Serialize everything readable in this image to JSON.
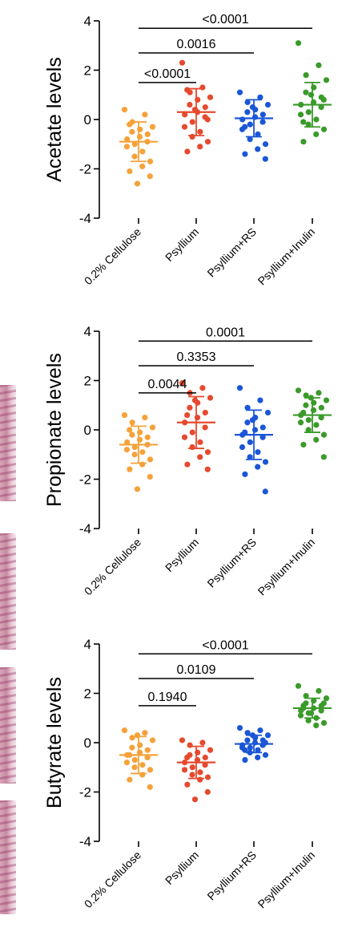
{
  "colors": [
    "#f5a23a",
    "#e64a2e",
    "#1a56d6",
    "#3a9a2a"
  ],
  "chart_data": [
    {
      "type": "scatter",
      "ylabel": "Acetate levels",
      "ylim": [
        -4,
        4
      ],
      "yticks": [
        "4",
        "2",
        "0",
        "-2",
        "-4"
      ],
      "categories": [
        "0.2% Cellulose",
        "Psyllium",
        "Psyllium+RS",
        "Psyllium+Inulin"
      ],
      "groups": [
        {
          "name": "0.2% Cellulose",
          "mean": -0.9,
          "sd": 0.8,
          "points": [
            0.4,
            0.2,
            -0.1,
            -0.3,
            -0.4,
            -0.5,
            -0.6,
            -0.7,
            -0.8,
            -0.9,
            -1.0,
            -1.1,
            -1.3,
            -1.5,
            -1.7,
            -1.9,
            -2.1,
            -2.3,
            -2.6,
            -0.2
          ]
        },
        {
          "name": "Psyllium",
          "mean": 0.3,
          "sd": 0.95,
          "points": [
            2.3,
            1.3,
            1.1,
            0.9,
            0.8,
            0.6,
            0.5,
            0.3,
            0.2,
            0.1,
            -0.1,
            -0.3,
            -0.5,
            -0.7,
            -0.9,
            -1.1,
            -1.3,
            0.0,
            0.4,
            1.2
          ]
        },
        {
          "name": "Psyllium+RS",
          "mean": 0.05,
          "sd": 0.75,
          "points": [
            1.1,
            0.9,
            0.7,
            0.6,
            0.4,
            0.3,
            0.2,
            0.1,
            0.0,
            -0.1,
            -0.2,
            -0.4,
            -0.6,
            -0.8,
            -1.0,
            -1.2,
            -1.4,
            -1.6,
            0.5,
            -0.3
          ]
        },
        {
          "name": "Psyllium+Inulin",
          "mean": 0.6,
          "sd": 0.9,
          "points": [
            3.1,
            2.2,
            1.8,
            1.6,
            1.3,
            1.1,
            0.9,
            0.7,
            0.6,
            0.5,
            0.3,
            0.2,
            0.0,
            -0.2,
            -0.4,
            -0.6,
            -0.9,
            0.8,
            1.0,
            -0.1
          ]
        }
      ],
      "comparisons": [
        {
          "from": 0,
          "to": 1,
          "y": 1.5,
          "label": "<0.0001"
        },
        {
          "from": 0,
          "to": 2,
          "y": 2.7,
          "label": "0.0016"
        },
        {
          "from": 0,
          "to": 3,
          "y": 3.7,
          "label": "<0.0001"
        }
      ]
    },
    {
      "type": "scatter",
      "ylabel": "Propionate levels",
      "ylim": [
        -4,
        4
      ],
      "yticks": [
        "4",
        "2",
        "0",
        "-2",
        "-4"
      ],
      "categories": [
        "0.2% Cellulose",
        "Psyllium",
        "Psyllium+RS",
        "Psyllium+Inulin"
      ],
      "groups": [
        {
          "name": "0.2% Cellulose",
          "mean": -0.6,
          "sd": 0.75,
          "points": [
            0.6,
            0.5,
            0.3,
            0.1,
            -0.1,
            -0.2,
            -0.3,
            -0.4,
            -0.5,
            -0.6,
            -0.7,
            -0.8,
            -0.9,
            -1.0,
            -1.2,
            -1.4,
            -1.6,
            -1.9,
            -2.4,
            0.0
          ]
        },
        {
          "name": "Psyllium",
          "mean": 0.3,
          "sd": 1.05,
          "points": [
            1.9,
            1.7,
            1.5,
            1.3,
            1.1,
            0.9,
            0.7,
            0.5,
            0.3,
            0.1,
            -0.1,
            -0.3,
            -0.5,
            -0.7,
            -0.9,
            -1.1,
            -1.4,
            -1.6,
            1.2,
            0.6
          ]
        },
        {
          "name": "Psyllium+RS",
          "mean": -0.2,
          "sd": 1.0,
          "points": [
            1.7,
            1.2,
            0.9,
            0.7,
            0.5,
            0.3,
            0.1,
            0.0,
            -0.2,
            -0.3,
            -0.5,
            -0.7,
            -0.9,
            -1.1,
            -1.3,
            -1.5,
            -1.8,
            -2.5,
            0.4,
            -0.1
          ]
        },
        {
          "name": "Psyllium+Inulin",
          "mean": 0.6,
          "sd": 0.7,
          "points": [
            1.6,
            1.5,
            1.4,
            1.2,
            1.1,
            1.0,
            0.9,
            0.8,
            0.6,
            0.5,
            0.4,
            0.3,
            0.2,
            0.0,
            -0.2,
            -0.4,
            -0.6,
            -1.1,
            1.3,
            0.7
          ]
        }
      ],
      "comparisons": [
        {
          "from": 0,
          "to": 1,
          "y": 1.5,
          "label": "0.0044"
        },
        {
          "from": 0,
          "to": 2,
          "y": 2.6,
          "label": "0.3353"
        },
        {
          "from": 0,
          "to": 3,
          "y": 3.6,
          "label": "0.0001"
        }
      ]
    },
    {
      "type": "scatter",
      "ylabel": "Butyrate levels",
      "ylim": [
        -4,
        4
      ],
      "yticks": [
        "4",
        "2",
        "0",
        "-2",
        "-4"
      ],
      "categories": [
        "0.2% Cellulose",
        "Psyllium",
        "Psyllium+RS",
        "Psyllium+Inulin"
      ],
      "groups": [
        {
          "name": "0.2% Cellulose",
          "mean": -0.5,
          "sd": 0.75,
          "points": [
            0.5,
            0.4,
            0.2,
            0.1,
            -0.1,
            -0.2,
            -0.3,
            -0.4,
            -0.5,
            -0.6,
            -0.7,
            -0.8,
            -0.9,
            -1.0,
            -1.1,
            -1.3,
            -1.5,
            -1.8,
            0.3,
            -0.5
          ]
        },
        {
          "name": "Psyllium",
          "mean": -0.8,
          "sd": 0.65,
          "points": [
            0.1,
            0.0,
            -0.1,
            -0.3,
            -0.4,
            -0.5,
            -0.6,
            -0.7,
            -0.8,
            -0.9,
            -1.0,
            -1.1,
            -1.2,
            -1.3,
            -1.4,
            -1.5,
            -1.7,
            -2.0,
            -2.3,
            -0.6
          ]
        },
        {
          "name": "Psyllium+RS",
          "mean": -0.05,
          "sd": 0.35,
          "points": [
            0.6,
            0.5,
            0.4,
            0.3,
            0.2,
            0.1,
            0.1,
            0.0,
            -0.1,
            -0.1,
            -0.2,
            -0.2,
            -0.3,
            -0.4,
            -0.5,
            -0.6,
            -0.7,
            0.0,
            0.3,
            -0.3
          ]
        },
        {
          "name": "Psyllium+Inulin",
          "mean": 1.4,
          "sd": 0.4,
          "points": [
            2.3,
            2.1,
            1.9,
            1.8,
            1.7,
            1.6,
            1.5,
            1.4,
            1.3,
            1.3,
            1.2,
            1.1,
            1.0,
            0.9,
            0.8,
            0.7,
            1.5,
            1.6,
            1.2,
            1.4
          ]
        }
      ],
      "comparisons": [
        {
          "from": 0,
          "to": 1,
          "y": 1.5,
          "label": "0.1940"
        },
        {
          "from": 0,
          "to": 2,
          "y": 2.6,
          "label": "0.0109"
        },
        {
          "from": 0,
          "to": 3,
          "y": 3.6,
          "label": "<0.0001"
        }
      ]
    }
  ]
}
